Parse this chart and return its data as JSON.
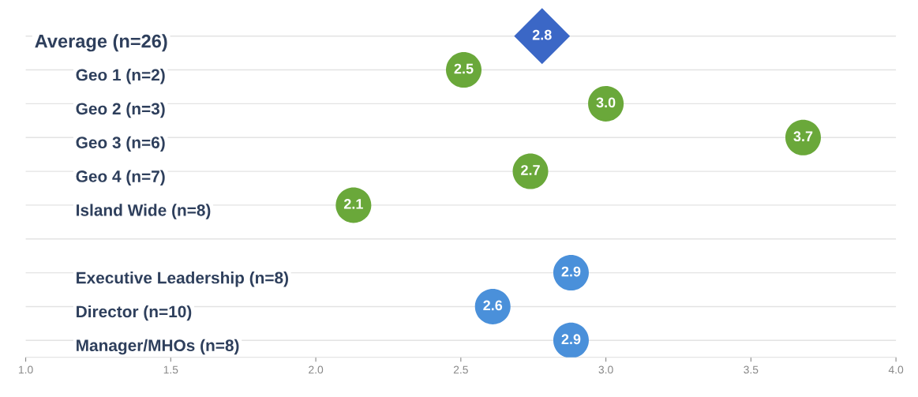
{
  "chart_data": {
    "type": "scatter",
    "categories": [
      "Average (n=26)",
      "Geo 1 (n=2)",
      "Geo 2 (n=3)",
      "Geo 3 (n=6)",
      "Geo 4 (n=7)",
      "Island Wide (n=8)",
      null,
      "Executive Leadership (n=8)",
      "Director (n=10)",
      "Manager/MHOs (n=8)"
    ],
    "series": [
      {
        "color": "#3b67c6",
        "marker": "diamond",
        "values": [
          2.78,
          null,
          null,
          null,
          null,
          null,
          null,
          null,
          null,
          null
        ],
        "value_labels": [
          "2.8",
          null,
          null,
          null,
          null,
          null,
          null,
          null,
          null,
          null
        ]
      },
      {
        "color": "#6aa83a",
        "marker": "circle",
        "values": [
          null,
          2.51,
          3.0,
          3.68,
          2.74,
          2.13,
          null,
          null,
          null,
          null
        ],
        "value_labels": [
          null,
          "2.5",
          "3.0",
          "3.7",
          "2.7",
          "2.1",
          null,
          null,
          null,
          null
        ]
      },
      {
        "color": "#4a90da",
        "marker": "circle",
        "values": [
          null,
          null,
          null,
          null,
          null,
          null,
          null,
          2.88,
          2.61,
          2.88
        ],
        "value_labels": [
          null,
          null,
          null,
          null,
          null,
          null,
          null,
          "2.9",
          "2.6",
          "2.9"
        ]
      }
    ],
    "xlim": [
      1.0,
      4.0
    ],
    "xticks": [
      {
        "value": 1.0,
        "label": "1.0"
      },
      {
        "value": 1.5,
        "label": "1.5"
      },
      {
        "value": 2.0,
        "label": "2.0"
      },
      {
        "value": 2.5,
        "label": "2.5"
      },
      {
        "value": 3.0,
        "label": "3.0"
      },
      {
        "value": 3.5,
        "label": "3.5"
      },
      {
        "value": 4.0,
        "label": "4.0"
      }
    ],
    "grid": "y",
    "orientation": "horizontal"
  }
}
